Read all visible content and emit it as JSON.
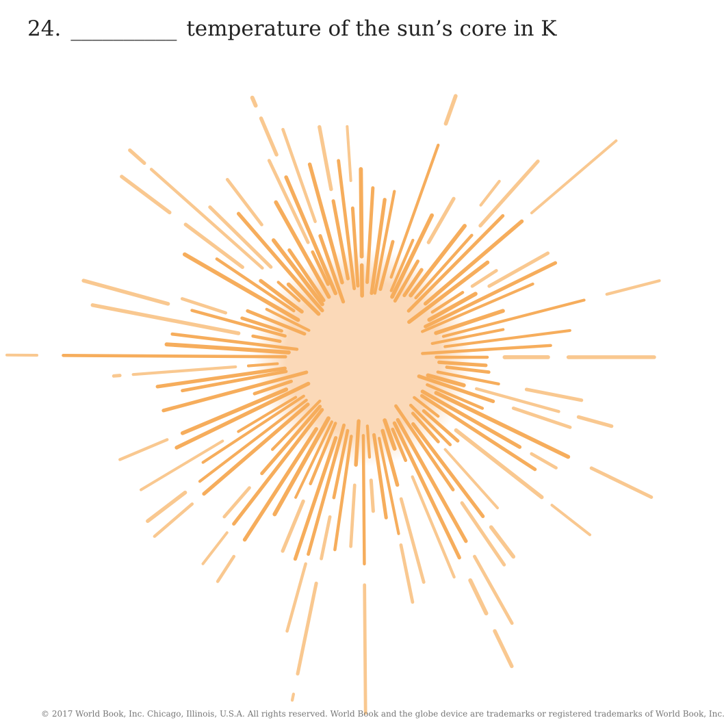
{
  "question": {
    "number": "24.",
    "blank": "__________",
    "text": "temperature of the sun’s core in K"
  },
  "footer": "© 2017 World Book, Inc. Chicago, Illinois, U.S.A. All rights reserved. World Book and the globe device are trademarks or registered trademarks of World Book, Inc."
}
